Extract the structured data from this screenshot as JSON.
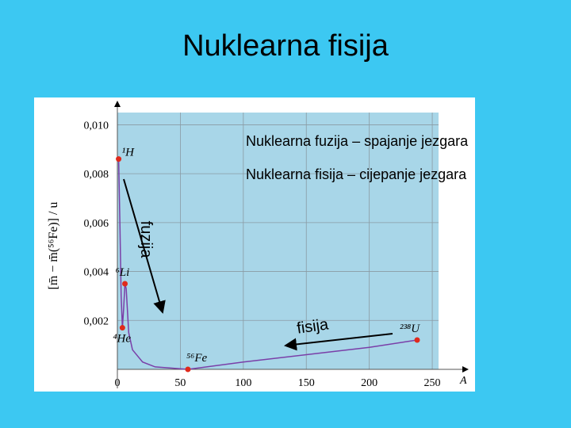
{
  "chart_data": {
    "type": "line",
    "title": "Nuklearna fisija",
    "x": [
      1,
      2,
      3,
      4,
      5,
      6,
      7,
      9,
      12,
      20,
      30,
      56,
      100,
      150,
      200,
      238
    ],
    "values": [
      0.0086,
      0.006,
      0.003,
      0.0017,
      0.0025,
      0.0035,
      0.0033,
      0.0015,
      0.0008,
      0.0003,
      0.0001,
      0,
      0.0003,
      0.0006,
      0.0009,
      0.0012
    ],
    "color": "#7a3fa8",
    "markers": {
      "x": [
        1,
        4,
        6,
        56,
        238
      ],
      "values": [
        0.0086,
        0.0017,
        0.0035,
        0,
        0.0012
      ],
      "labels": [
        "¹H",
        "⁴He",
        "⁶Li",
        "⁵⁶Fe",
        "²³⁸U"
      ],
      "color": "#e02a1c"
    },
    "xlim": [
      0,
      255
    ],
    "ylim": [
      0,
      0.0105
    ],
    "xticks": [
      0,
      50,
      100,
      150,
      200,
      250
    ],
    "yticks": [
      {
        "value": 0.002,
        "label": "0,002"
      },
      {
        "value": 0.004,
        "label": "0,004"
      },
      {
        "value": 0.006,
        "label": "0,006"
      },
      {
        "value": 0.008,
        "label": "0,008"
      },
      {
        "value": 0.01,
        "label": "0,010"
      }
    ],
    "x_label": "A",
    "y_label": "[m̄ − m̄(⁵⁶Fe)] / u",
    "grid": true,
    "annotations": [
      "Nuklearna fuzija – spajanje jezgara",
      "Nuklearna fisija – cijepanje jezgara",
      "fuzija",
      "fisija"
    ]
  }
}
